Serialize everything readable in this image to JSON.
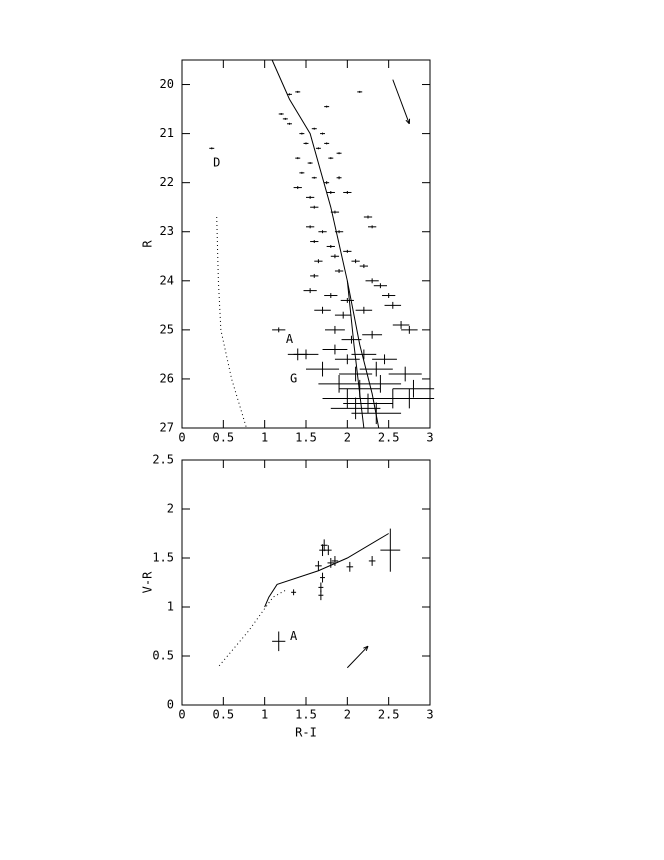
{
  "chart_data": [
    {
      "type": "scatter",
      "ylabel": "R",
      "xlim": [
        0,
        3
      ],
      "ylim": [
        19.5,
        27
      ],
      "y_inverted": true,
      "xticks": [
        0,
        0.5,
        1,
        1.5,
        2,
        2.5,
        3
      ],
      "yticks": [
        20,
        21,
        22,
        23,
        24,
        25,
        26,
        27
      ],
      "points": {
        "x": [
          0.36,
          1.3,
          1.4,
          1.75,
          2.15,
          1.2,
          1.25,
          1.3,
          1.45,
          1.6,
          1.7,
          1.5,
          1.65,
          1.75,
          1.4,
          1.55,
          1.8,
          1.9,
          1.45,
          1.6,
          1.75,
          1.9,
          1.4,
          1.55,
          1.8,
          2.0,
          1.6,
          1.85,
          2.25,
          1.55,
          1.7,
          1.9,
          2.3,
          1.6,
          1.8,
          2.0,
          1.65,
          1.85,
          2.1,
          1.6,
          1.9,
          2.2,
          2.3,
          1.55,
          1.8,
          2.0,
          2.4,
          2.5,
          1.7,
          1.95,
          2.2,
          2.55,
          1.17,
          1.4,
          1.85,
          2.05,
          2.3,
          2.65,
          2.75,
          1.5,
          1.85,
          2.0,
          2.2,
          2.45,
          1.7,
          2.1,
          2.35,
          2.7,
          1.9,
          2.15,
          2.4,
          2.8,
          2.0,
          2.25,
          2.55,
          2.75,
          2.1,
          2.35
        ],
        "y": [
          21.3,
          20.2,
          20.15,
          20.45,
          20.15,
          20.6,
          20.7,
          20.8,
          21.0,
          20.9,
          21.0,
          21.2,
          21.3,
          21.2,
          21.5,
          21.6,
          21.5,
          21.4,
          21.8,
          21.9,
          22.0,
          21.9,
          22.1,
          22.3,
          22.2,
          22.2,
          22.5,
          22.6,
          22.7,
          22.9,
          23.0,
          23.0,
          22.9,
          23.2,
          23.3,
          23.4,
          23.6,
          23.5,
          23.6,
          23.9,
          23.8,
          23.7,
          24.0,
          24.2,
          24.3,
          24.4,
          24.1,
          24.3,
          24.6,
          24.7,
          24.6,
          24.5,
          25.0,
          25.5,
          25.0,
          25.2,
          25.1,
          24.9,
          25.0,
          25.5,
          25.4,
          25.6,
          25.5,
          25.6,
          25.8,
          25.9,
          25.8,
          25.9,
          26.1,
          26.2,
          26.1,
          26.2,
          26.4,
          26.5,
          26.4,
          26.4,
          26.6,
          26.7
        ],
        "xerr": [
          0.03,
          0.03,
          0.03,
          0.03,
          0.03,
          0.03,
          0.03,
          0.03,
          0.03,
          0.03,
          0.03,
          0.03,
          0.03,
          0.03,
          0.03,
          0.03,
          0.03,
          0.03,
          0.03,
          0.03,
          0.03,
          0.03,
          0.05,
          0.05,
          0.05,
          0.05,
          0.05,
          0.05,
          0.05,
          0.05,
          0.05,
          0.05,
          0.05,
          0.05,
          0.05,
          0.05,
          0.05,
          0.05,
          0.05,
          0.05,
          0.05,
          0.05,
          0.08,
          0.08,
          0.08,
          0.08,
          0.08,
          0.08,
          0.1,
          0.1,
          0.1,
          0.1,
          0.08,
          0.12,
          0.12,
          0.12,
          0.12,
          0.1,
          0.1,
          0.15,
          0.15,
          0.15,
          0.15,
          0.15,
          0.2,
          0.2,
          0.2,
          0.2,
          0.25,
          0.25,
          0.25,
          0.25,
          0.3,
          0.3,
          0.3,
          0.3,
          0.3,
          0.3
        ],
        "yerr": [
          0.02,
          0.02,
          0.02,
          0.02,
          0.02,
          0.02,
          0.02,
          0.02,
          0.02,
          0.02,
          0.02,
          0.02,
          0.02,
          0.02,
          0.02,
          0.02,
          0.02,
          0.02,
          0.02,
          0.02,
          0.03,
          0.03,
          0.03,
          0.03,
          0.03,
          0.03,
          0.03,
          0.03,
          0.03,
          0.03,
          0.03,
          0.03,
          0.03,
          0.03,
          0.03,
          0.03,
          0.04,
          0.04,
          0.04,
          0.04,
          0.04,
          0.04,
          0.05,
          0.05,
          0.05,
          0.05,
          0.05,
          0.05,
          0.07,
          0.07,
          0.07,
          0.07,
          0.05,
          0.12,
          0.08,
          0.08,
          0.08,
          0.08,
          0.08,
          0.1,
          0.1,
          0.1,
          0.1,
          0.1,
          0.15,
          0.15,
          0.15,
          0.15,
          0.18,
          0.18,
          0.18,
          0.18,
          0.2,
          0.2,
          0.2,
          0.2,
          0.22,
          0.22
        ]
      },
      "lines": [
        {
          "style": "solid",
          "x": [
            1.09,
            1.3,
            1.55,
            1.8,
            2.0,
            2.15,
            2.3,
            2.38
          ],
          "y": [
            19.5,
            20.3,
            21.0,
            22.5,
            24.0,
            25.3,
            26.3,
            27
          ]
        },
        {
          "style": "solid",
          "x": [
            2.0,
            2.08,
            2.15,
            2.2
          ],
          "y": [
            24.0,
            25.3,
            26.3,
            27
          ]
        },
        {
          "style": "dotted",
          "x": [
            0.42,
            0.44,
            0.47,
            0.6,
            0.78
          ],
          "y": [
            22.7,
            24.0,
            25.0,
            26.0,
            27
          ]
        }
      ],
      "arrow": {
        "x": [
          2.55,
          2.75
        ],
        "y": [
          19.9,
          20.8
        ]
      },
      "annotations": [
        {
          "text": "D",
          "x": 0.42,
          "y": 21.6
        },
        {
          "text": "A",
          "x": 1.3,
          "y": 25.2
        },
        {
          "text": "G",
          "x": 1.35,
          "y": 26.0
        }
      ]
    },
    {
      "type": "scatter",
      "xlabel": "R-I",
      "ylabel": "V-R",
      "xlim": [
        0,
        3
      ],
      "ylim": [
        0,
        2.5
      ],
      "y_inverted": false,
      "xticks": [
        0,
        0.5,
        1,
        1.5,
        2,
        2.5,
        3
      ],
      "yticks": [
        0,
        0.5,
        1,
        1.5,
        2,
        2.5
      ],
      "points": {
        "x": [
          1.17,
          1.35,
          1.65,
          1.68,
          1.68,
          1.7,
          1.7,
          1.72,
          1.77,
          1.8,
          1.85,
          2.03,
          2.3,
          2.52
        ],
        "y": [
          0.65,
          1.15,
          1.42,
          1.12,
          1.2,
          1.3,
          1.58,
          1.63,
          1.58,
          1.45,
          1.47,
          1.41,
          1.47,
          1.58
        ],
        "xerr": [
          0.08,
          0.03,
          0.04,
          0.03,
          0.03,
          0.03,
          0.04,
          0.04,
          0.04,
          0.04,
          0.04,
          0.04,
          0.04,
          0.12
        ],
        "yerr": [
          0.1,
          0.03,
          0.05,
          0.05,
          0.05,
          0.05,
          0.06,
          0.06,
          0.05,
          0.05,
          0.05,
          0.05,
          0.05,
          0.22
        ]
      },
      "lines": [
        {
          "style": "solid",
          "x": [
            1.0,
            1.05,
            1.15,
            1.65,
            2.0,
            2.5
          ],
          "y": [
            1.0,
            1.1,
            1.23,
            1.37,
            1.5,
            1.75
          ]
        },
        {
          "style": "dotted",
          "x": [
            0.45,
            0.8,
            1.1,
            1.25
          ],
          "y": [
            0.4,
            0.75,
            1.1,
            1.17
          ]
        }
      ],
      "arrow": {
        "x": [
          2.0,
          2.25
        ],
        "y": [
          0.38,
          0.6
        ]
      },
      "annotations": [
        {
          "text": "A",
          "x": 1.35,
          "y": 0.7
        }
      ]
    }
  ]
}
